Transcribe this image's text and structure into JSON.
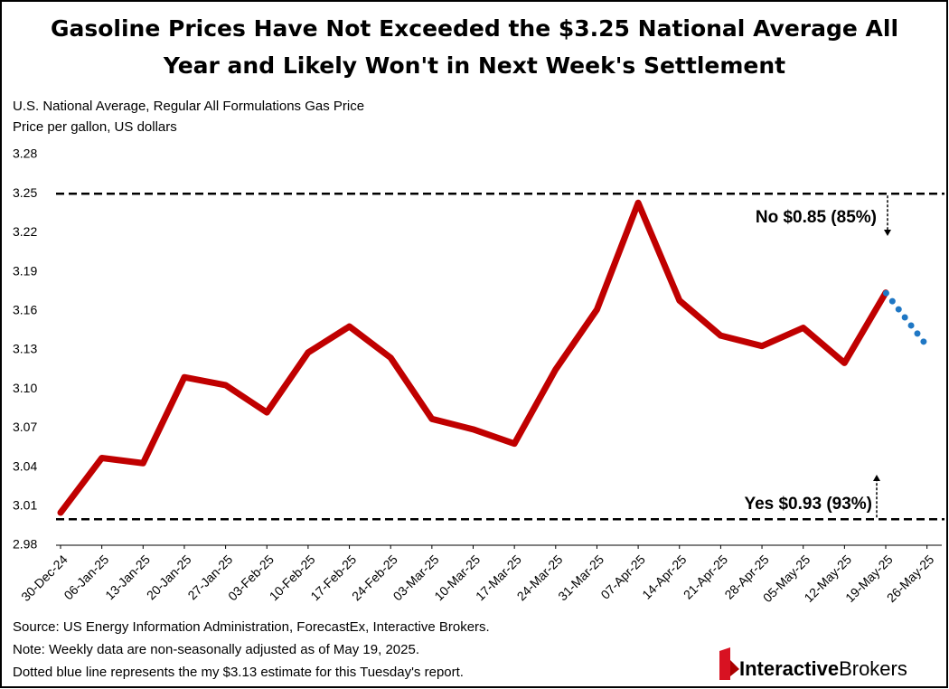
{
  "chart_data": {
    "type": "line",
    "title": [
      "Gasoline Prices Have Not Exceeded the $3.25 National Average All",
      "Year and Likely Won't in Next Week's Settlement"
    ],
    "subtitle": [
      "U.S. National Average, Regular All Formulations Gas Price",
      "Price per gallon, US dollars"
    ],
    "categories": [
      "30-Dec-24",
      "06-Jan-25",
      "13-Jan-25",
      "20-Jan-25",
      "27-Jan-25",
      "03-Feb-25",
      "10-Feb-25",
      "17-Feb-25",
      "24-Feb-25",
      "03-Mar-25",
      "10-Mar-25",
      "17-Mar-25",
      "24-Mar-25",
      "31-Mar-25",
      "07-Apr-25",
      "14-Apr-25",
      "21-Apr-25",
      "28-Apr-25",
      "05-May-25",
      "12-May-25",
      "19-May-25",
      "26-May-25"
    ],
    "series": [
      {
        "color": "#c00000",
        "style": "solid",
        "values": [
          3.005,
          3.047,
          3.043,
          3.109,
          3.103,
          3.082,
          3.128,
          3.148,
          3.124,
          3.077,
          3.069,
          3.058,
          3.115,
          3.161,
          3.243,
          3.168,
          3.141,
          3.133,
          3.147,
          3.12,
          3.174,
          null
        ]
      },
      {
        "color": "#1f77c4",
        "style": "dotted",
        "values": [
          null,
          null,
          null,
          null,
          null,
          null,
          null,
          null,
          null,
          null,
          null,
          null,
          null,
          null,
          null,
          null,
          null,
          null,
          null,
          null,
          3.174,
          3.133
        ]
      }
    ],
    "ylim": [
      2.98,
      3.28
    ],
    "yticks": [
      2.98,
      3.01,
      3.04,
      3.07,
      {
        "value": 3.1,
        "label": "3.10"
      },
      3.13,
      3.16,
      3.19,
      3.22,
      3.25,
      3.28
    ],
    "reference_lines": [
      3.25,
      3.0
    ],
    "annotations": [
      {
        "text": "No $0.85 (85%)",
        "color": "#e00000"
      },
      {
        "text": "Yes $0.93 (93%)",
        "color": "#00a050"
      }
    ],
    "notes": [
      "Source: US Energy Information Administration, ForecastEx,  Interactive Brokers.",
      "Note: Weekly data are non-seasonally adjusted as of May 19, 2025.",
      "Dotted blue line represents the my $3.13 estimate for this Tuesday's report."
    ],
    "logo": [
      "Interactive",
      "Brokers"
    ]
  }
}
